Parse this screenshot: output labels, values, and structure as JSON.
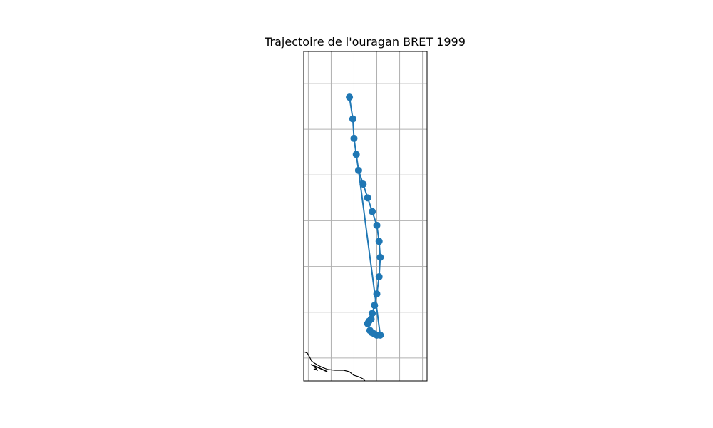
{
  "chart_data": {
    "type": "line",
    "title": "Trajectoire de l'ouragan BRET 1999",
    "xlabel": "",
    "ylabel": "",
    "xlim": [
      0,
      5.4
    ],
    "ylim": [
      0,
      14.4
    ],
    "grid": true,
    "ticks_labeled": false,
    "series": [
      {
        "marker": "circle",
        "color": "#1f77b4",
        "x": [
          2.0,
          2.15,
          2.2,
          2.3,
          2.4,
          2.6,
          2.8,
          3.0,
          3.2,
          3.3,
          3.35,
          3.3,
          3.2,
          3.1,
          3.0,
          2.95,
          2.85,
          2.8,
          2.9,
          3.0,
          3.1,
          3.2,
          3.35
        ],
        "y": [
          12.4,
          11.45,
          10.6,
          9.9,
          9.2,
          8.6,
          8.0,
          7.4,
          6.8,
          6.1,
          5.4,
          4.55,
          3.8,
          3.3,
          2.95,
          2.7,
          2.6,
          2.5,
          2.2,
          2.1,
          2.05,
          2.0,
          2.0
        ]
      },
      {
        "marker": "none",
        "color": "#1f77b4",
        "x": [
          3.35,
          2.4
        ],
        "y": [
          2.0,
          9.2
        ]
      }
    ]
  },
  "map": {
    "coastline_color": "#000000",
    "frame_color": "#000000",
    "grid_color": "#b0b0b0"
  }
}
